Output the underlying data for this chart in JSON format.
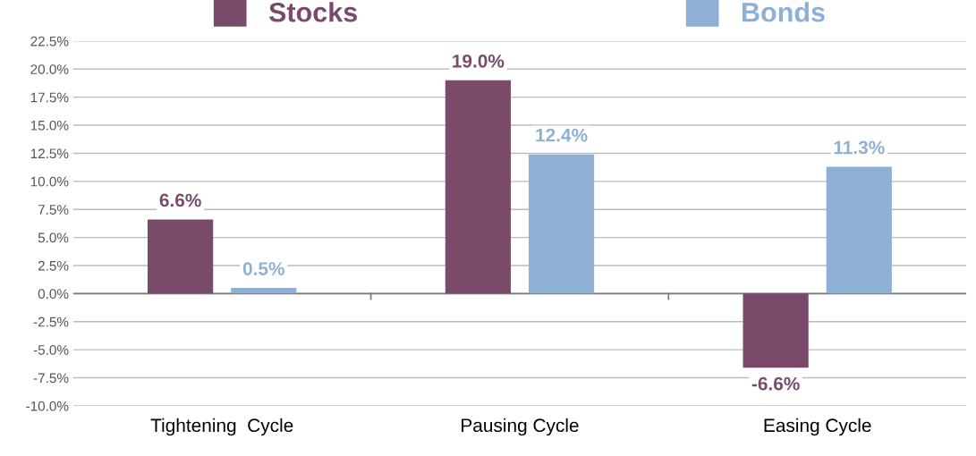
{
  "chart_data": {
    "type": "bar",
    "categories": [
      "Tightening  Cycle",
      "Pausing Cycle",
      "Easing Cycle"
    ],
    "series": [
      {
        "name": "Stocks",
        "color": "#7a4a6b",
        "values": [
          6.6,
          19.0,
          -6.6
        ],
        "value_labels": [
          "6.6%",
          "19.0%",
          "-6.6%"
        ]
      },
      {
        "name": "Bonds",
        "color": "#8eb0d4",
        "values": [
          0.5,
          12.4,
          11.3
        ],
        "value_labels": [
          "0.5%",
          "12.4%",
          "11.3%"
        ]
      }
    ],
    "ylim": [
      -10,
      22.5
    ],
    "yticks": [
      {
        "value": -10,
        "label": "-10.0%"
      },
      {
        "value": -7.5,
        "label": "-7.5%"
      },
      {
        "value": -5,
        "label": "-5.0%"
      },
      {
        "value": -2.5,
        "label": "-2.5%"
      },
      {
        "value": 0,
        "label": "0.0%"
      },
      {
        "value": 2.5,
        "label": "2.5%"
      },
      {
        "value": 5,
        "label": "5.0%"
      },
      {
        "value": 7.5,
        "label": "7.5%"
      },
      {
        "value": 10,
        "label": "10.0%"
      },
      {
        "value": 12.5,
        "label": "12.5%"
      },
      {
        "value": 15,
        "label": "15.0%"
      },
      {
        "value": 17.5,
        "label": "17.5%"
      },
      {
        "value": 20,
        "label": "20.0%"
      },
      {
        "value": 22.5,
        "label": "22.5%"
      }
    ],
    "grid": "y",
    "legend": "top"
  }
}
